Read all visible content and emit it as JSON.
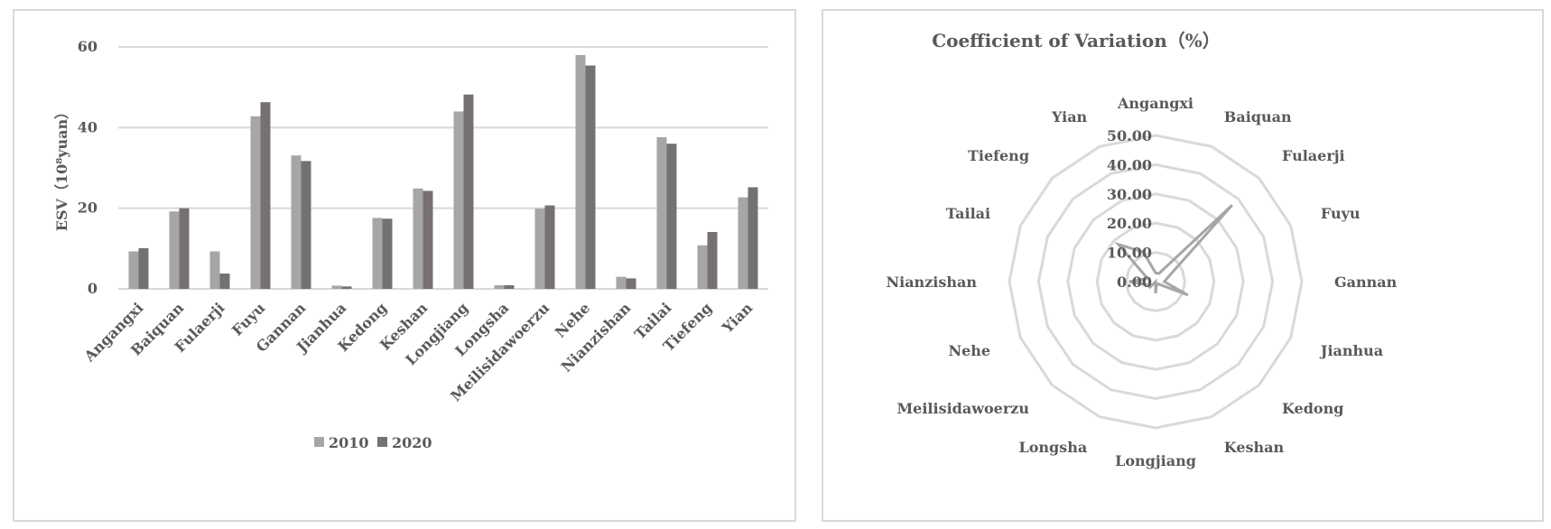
{
  "chart_data": [
    {
      "type": "bar",
      "title": "",
      "ylabel": "ESV（10⁸yuan）",
      "xlabel": "",
      "ylim": [
        0,
        60
      ],
      "yticks": [
        "0",
        "20",
        "40",
        "60"
      ],
      "grid": true,
      "legend_position": "bottom",
      "categories": [
        "Angangxi",
        "Baiquan",
        "Fulaerji",
        "Fuyu",
        "Gannan",
        "Jianhua",
        "Kedong",
        "Keshan",
        "Longjiang",
        "Longsha",
        "Meilisidawoerzu",
        "Nehe",
        "Nianzishan",
        "Tailai",
        "Tiefeng",
        "Yian"
      ],
      "series": [
        {
          "name": "2010",
          "color": "#a6a6a6",
          "values": [
            9.3,
            19.2,
            9.3,
            42.8,
            33.1,
            0.8,
            17.6,
            24.9,
            44.0,
            0.9,
            19.9,
            58.0,
            3.0,
            37.6,
            10.8,
            22.7
          ]
        },
        {
          "name": "2020",
          "color": "#767171",
          "values": [
            10.1,
            20.0,
            3.8,
            46.3,
            31.7,
            0.6,
            17.4,
            24.3,
            48.2,
            0.9,
            20.7,
            55.4,
            2.6,
            36.0,
            14.1,
            25.2
          ]
        }
      ]
    },
    {
      "type": "radar",
      "title": "Coefficient of Variation（%）",
      "rlim": [
        0,
        50
      ],
      "rticks": [
        "0.00",
        "10.00",
        "20.00",
        "30.00",
        "40.00",
        "50.00"
      ],
      "grid": true,
      "categories": [
        "Angangxi",
        "Baiquan",
        "Fulaerji",
        "Fuyu",
        "Gannan",
        "Jianhua",
        "Kedong",
        "Keshan",
        "Longjiang",
        "Longsha",
        "Meilisidawoerzu",
        "Nehe",
        "Nianzishan",
        "Tailai",
        "Tiefeng",
        "Yian"
      ],
      "series": [
        {
          "color": "#a6a6a6",
          "values": [
            3.0,
            3.0,
            37.0,
            5.0,
            3.0,
            12.0,
            1.0,
            1.0,
            4.0,
            0.0,
            2.7,
            3.0,
            9.0,
            3.0,
            18.0,
            11.0
          ]
        }
      ]
    }
  ]
}
